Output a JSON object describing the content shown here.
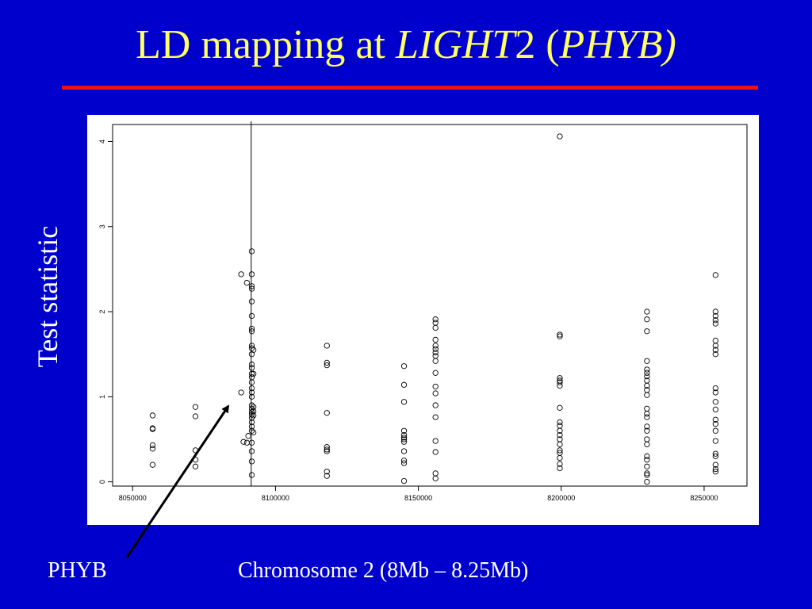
{
  "slide": {
    "title_prefix": "LD mapping at ",
    "title_gene": "LIGHT",
    "title_number": "2 (",
    "title_alias": "PHYB",
    "title_suffix": ")",
    "phyb_label": "PHYB",
    "colors": {
      "background": "#0000cc",
      "title": "#ffff66",
      "rule": "#ee1111",
      "text": "#ffffff"
    }
  },
  "chart_data": {
    "type": "scatter",
    "title": "",
    "xlabel": "Chromosome 2 (8Mb – 8.25Mb)",
    "ylabel": "Test statistic",
    "xlim": [
      8043000,
      8265000
    ],
    "ylim": [
      -0.05,
      4.2
    ],
    "xticks": [
      8050000,
      8100000,
      8150000,
      8200000,
      8250000
    ],
    "xtick_labels": [
      "8050000",
      "8100000",
      "8150000",
      "8200000",
      "8250000"
    ],
    "yticks": [
      0,
      1,
      2,
      3,
      4
    ],
    "ytick_labels": [
      "0",
      "1",
      "2",
      "3",
      "4"
    ],
    "vline_x": 8091500,
    "grid": false,
    "marker": "open-circle",
    "points": [
      [
        8057000,
        0.78
      ],
      [
        8057000,
        0.63
      ],
      [
        8057000,
        0.62
      ],
      [
        8057000,
        0.43
      ],
      [
        8057000,
        0.39
      ],
      [
        8057000,
        0.2
      ],
      [
        8072000,
        0.88
      ],
      [
        8072000,
        0.77
      ],
      [
        8072000,
        0.37
      ],
      [
        8072000,
        0.26
      ],
      [
        8072000,
        0.18
      ],
      [
        8088000,
        2.44
      ],
      [
        8088000,
        1.05
      ],
      [
        8088800,
        0.47
      ],
      [
        8090000,
        2.34
      ],
      [
        8090000,
        0.46
      ],
      [
        8090500,
        0.54
      ],
      [
        8091700,
        2.71
      ],
      [
        8091700,
        2.44
      ],
      [
        8091700,
        2.3
      ],
      [
        8091700,
        2.27
      ],
      [
        8091700,
        2.12
      ],
      [
        8091700,
        1.95
      ],
      [
        8091700,
        1.8
      ],
      [
        8091700,
        1.77
      ],
      [
        8091700,
        1.6
      ],
      [
        8091700,
        1.57
      ],
      [
        8091700,
        1.5
      ],
      [
        8091700,
        1.38
      ],
      [
        8091700,
        1.34
      ],
      [
        8091700,
        1.27
      ],
      [
        8091700,
        1.23
      ],
      [
        8091700,
        1.17
      ],
      [
        8091700,
        1.1
      ],
      [
        8091700,
        1.05
      ],
      [
        8091700,
        1.0
      ],
      [
        8091700,
        0.9
      ],
      [
        8091700,
        0.86
      ],
      [
        8091700,
        0.82
      ],
      [
        8091700,
        0.79
      ],
      [
        8091700,
        0.75
      ],
      [
        8091700,
        0.7
      ],
      [
        8091700,
        0.65
      ],
      [
        8091700,
        0.6
      ],
      [
        8091700,
        0.46
      ],
      [
        8091700,
        0.36
      ],
      [
        8091700,
        0.24
      ],
      [
        8091700,
        0.08
      ],
      [
        8092300,
        1.55
      ],
      [
        8092300,
        1.27
      ],
      [
        8092300,
        0.88
      ],
      [
        8092300,
        0.83
      ],
      [
        8092300,
        0.78
      ],
      [
        8092300,
        0.58
      ],
      [
        8118000,
        1.6
      ],
      [
        8118000,
        1.4
      ],
      [
        8118000,
        1.37
      ],
      [
        8118000,
        0.81
      ],
      [
        8118000,
        0.41
      ],
      [
        8118000,
        0.38
      ],
      [
        8118000,
        0.36
      ],
      [
        8118000,
        0.12
      ],
      [
        8118000,
        0.07
      ],
      [
        8145000,
        1.36
      ],
      [
        8145000,
        1.14
      ],
      [
        8145000,
        0.94
      ],
      [
        8145000,
        0.6
      ],
      [
        8145000,
        0.55
      ],
      [
        8145000,
        0.52
      ],
      [
        8145000,
        0.5
      ],
      [
        8145000,
        0.47
      ],
      [
        8145000,
        0.36
      ],
      [
        8145000,
        0.25
      ],
      [
        8145000,
        0.22
      ],
      [
        8145000,
        0.01
      ],
      [
        8156000,
        1.91
      ],
      [
        8156000,
        1.87
      ],
      [
        8156000,
        1.81
      ],
      [
        8156000,
        1.67
      ],
      [
        8156000,
        1.6
      ],
      [
        8156000,
        1.56
      ],
      [
        8156000,
        1.52
      ],
      [
        8156000,
        1.48
      ],
      [
        8156000,
        1.42
      ],
      [
        8156000,
        1.28
      ],
      [
        8156000,
        1.12
      ],
      [
        8156000,
        1.04
      ],
      [
        8156000,
        0.9
      ],
      [
        8156000,
        0.76
      ],
      [
        8156000,
        0.48
      ],
      [
        8156000,
        0.35
      ],
      [
        8156000,
        0.1
      ],
      [
        8156000,
        0.04
      ],
      [
        8199500,
        4.06
      ],
      [
        8199500,
        1.73
      ],
      [
        8199500,
        1.71
      ],
      [
        8199500,
        1.22
      ],
      [
        8199500,
        1.19
      ],
      [
        8199500,
        1.17
      ],
      [
        8199500,
        1.13
      ],
      [
        8199500,
        0.87
      ],
      [
        8199500,
        0.7
      ],
      [
        8199500,
        0.66
      ],
      [
        8199500,
        0.6
      ],
      [
        8199500,
        0.55
      ],
      [
        8199500,
        0.5
      ],
      [
        8199500,
        0.44
      ],
      [
        8199500,
        0.37
      ],
      [
        8199500,
        0.34
      ],
      [
        8199500,
        0.28
      ],
      [
        8199500,
        0.21
      ],
      [
        8199500,
        0.16
      ],
      [
        8230000,
        2.0
      ],
      [
        8230000,
        1.91
      ],
      [
        8230000,
        1.77
      ],
      [
        8230000,
        1.42
      ],
      [
        8230000,
        1.32
      ],
      [
        8230000,
        1.28
      ],
      [
        8230000,
        1.24
      ],
      [
        8230000,
        1.19
      ],
      [
        8230000,
        1.13
      ],
      [
        8230000,
        1.08
      ],
      [
        8230000,
        1.02
      ],
      [
        8230000,
        0.86
      ],
      [
        8230000,
        0.8
      ],
      [
        8230000,
        0.76
      ],
      [
        8230000,
        0.65
      ],
      [
        8230000,
        0.6
      ],
      [
        8230000,
        0.5
      ],
      [
        8230000,
        0.44
      ],
      [
        8230000,
        0.3
      ],
      [
        8230000,
        0.26
      ],
      [
        8230000,
        0.18
      ],
      [
        8230000,
        0.1
      ],
      [
        8230000,
        0.08
      ],
      [
        8230000,
        0.0
      ],
      [
        8254000,
        2.43
      ],
      [
        8254000,
        2.0
      ],
      [
        8254000,
        1.95
      ],
      [
        8254000,
        1.9
      ],
      [
        8254000,
        1.86
      ],
      [
        8254000,
        1.66
      ],
      [
        8254000,
        1.6
      ],
      [
        8254000,
        1.55
      ],
      [
        8254000,
        1.5
      ],
      [
        8254000,
        1.1
      ],
      [
        8254000,
        1.05
      ],
      [
        8254000,
        0.94
      ],
      [
        8254000,
        0.85
      ],
      [
        8254000,
        0.73
      ],
      [
        8254000,
        0.68
      ],
      [
        8254000,
        0.6
      ],
      [
        8254000,
        0.48
      ],
      [
        8254000,
        0.33
      ],
      [
        8254000,
        0.3
      ],
      [
        8254000,
        0.2
      ],
      [
        8254000,
        0.15
      ],
      [
        8254000,
        0.12
      ]
    ]
  }
}
